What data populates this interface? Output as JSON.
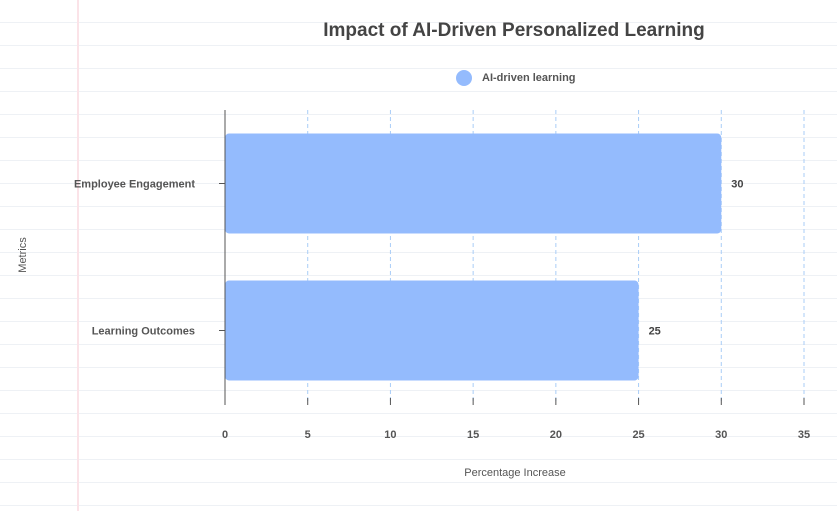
{
  "chart_data": {
    "type": "bar",
    "orientation": "horizontal",
    "title": "Impact of AI-Driven Personalized Learning",
    "xlabel": "Percentage Increase",
    "ylabel": "Metrics",
    "categories": [
      "Employee Engagement",
      "Learning Outcomes"
    ],
    "series": [
      {
        "name": "AI-driven learning",
        "values": [
          30,
          25
        ],
        "color": "#94bbfd"
      }
    ],
    "xlim": [
      0,
      35
    ],
    "xticks": [
      0,
      5,
      10,
      15,
      20,
      25,
      30,
      35
    ],
    "xtick_labels": [
      "0",
      "5",
      "10",
      "15",
      "20",
      "25",
      "30",
      "35"
    ],
    "data_labels": [
      "30",
      "25"
    ],
    "legend_position": "top-center",
    "grid": "vertical dashed"
  },
  "colors": {
    "bar": "#94bbfd",
    "grid": "#a9cdf7",
    "axis": "#555555",
    "title": "#444444"
  }
}
